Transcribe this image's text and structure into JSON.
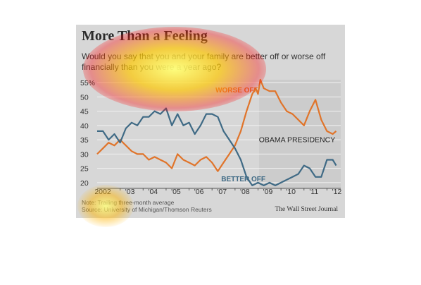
{
  "header": {
    "title": "More Than a Feeling",
    "subtitle": "Would you say that you and your family are better off or worse off financially than you were a year ago?"
  },
  "footer": {
    "note": "Note: Trailing three-month average",
    "source": "Source: University of Michigan/Thomson Reuters",
    "credit": "The Wall Street Journal"
  },
  "chart_data": {
    "type": "line",
    "title": "More Than a Feeling",
    "subtitle": "Would you say that you and your family are better off or worse off financially than you were a year ago?",
    "xlabel": "",
    "ylabel": "",
    "x_ticks": [
      "2002",
      "'03",
      "'04",
      "'05",
      "'06",
      "'07",
      "'08",
      "'09",
      "'10",
      "'11",
      "'12"
    ],
    "y_ticks": [
      "20",
      "25",
      "30",
      "35",
      "40",
      "45",
      "50",
      "55%"
    ],
    "xlim": [
      2002,
      2012.6
    ],
    "ylim": [
      18,
      56
    ],
    "grid": true,
    "annotations": {
      "worse": "WORSE OFF",
      "better": "BETTER OFF",
      "obama": "OBAMA PRESIDENCY"
    },
    "shaded_region": [
      2009.05,
      2012.6
    ],
    "colors": {
      "worse": "#e0742a",
      "better": "#3f6a85",
      "grid": "#f2f2f2",
      "shade": "#cccccc"
    },
    "series": [
      {
        "key": "worse",
        "label": "WORSE OFF",
        "points": [
          [
            2002.0,
            30
          ],
          [
            2002.25,
            32
          ],
          [
            2002.5,
            34
          ],
          [
            2002.75,
            33
          ],
          [
            2003.0,
            35
          ],
          [
            2003.25,
            33
          ],
          [
            2003.5,
            31
          ],
          [
            2003.75,
            30
          ],
          [
            2004.0,
            30
          ],
          [
            2004.25,
            28
          ],
          [
            2004.5,
            29
          ],
          [
            2004.75,
            28
          ],
          [
            2005.0,
            27
          ],
          [
            2005.25,
            25
          ],
          [
            2005.5,
            30
          ],
          [
            2005.75,
            28
          ],
          [
            2006.0,
            27
          ],
          [
            2006.25,
            26
          ],
          [
            2006.5,
            28
          ],
          [
            2006.75,
            29
          ],
          [
            2007.0,
            27
          ],
          [
            2007.25,
            24
          ],
          [
            2007.5,
            27
          ],
          [
            2007.75,
            30
          ],
          [
            2008.0,
            33
          ],
          [
            2008.25,
            38
          ],
          [
            2008.5,
            45
          ],
          [
            2008.75,
            51
          ],
          [
            2008.9,
            53
          ],
          [
            2009.0,
            51
          ],
          [
            2009.1,
            56
          ],
          [
            2009.25,
            53
          ],
          [
            2009.5,
            52
          ],
          [
            2009.75,
            52
          ],
          [
            2010.0,
            48
          ],
          [
            2010.25,
            45
          ],
          [
            2010.5,
            44
          ],
          [
            2010.75,
            42
          ],
          [
            2011.0,
            40
          ],
          [
            2011.25,
            45
          ],
          [
            2011.5,
            49
          ],
          [
            2011.75,
            42
          ],
          [
            2012.0,
            38
          ],
          [
            2012.25,
            37
          ],
          [
            2012.4,
            38
          ]
        ]
      },
      {
        "key": "better",
        "label": "BETTER OFF",
        "points": [
          [
            2002.0,
            38
          ],
          [
            2002.25,
            38
          ],
          [
            2002.5,
            35
          ],
          [
            2002.75,
            37
          ],
          [
            2003.0,
            34
          ],
          [
            2003.25,
            39
          ],
          [
            2003.5,
            41
          ],
          [
            2003.75,
            40
          ],
          [
            2004.0,
            43
          ],
          [
            2004.25,
            43
          ],
          [
            2004.5,
            45
          ],
          [
            2004.75,
            44
          ],
          [
            2005.0,
            46
          ],
          [
            2005.25,
            40
          ],
          [
            2005.5,
            44
          ],
          [
            2005.75,
            40
          ],
          [
            2006.0,
            41
          ],
          [
            2006.25,
            37
          ],
          [
            2006.5,
            40
          ],
          [
            2006.75,
            44
          ],
          [
            2007.0,
            44
          ],
          [
            2007.25,
            43
          ],
          [
            2007.5,
            38
          ],
          [
            2007.75,
            35
          ],
          [
            2008.0,
            32
          ],
          [
            2008.25,
            28
          ],
          [
            2008.5,
            22
          ],
          [
            2008.75,
            19
          ],
          [
            2009.0,
            20
          ],
          [
            2009.25,
            19
          ],
          [
            2009.5,
            20
          ],
          [
            2009.75,
            19
          ],
          [
            2010.0,
            20
          ],
          [
            2010.25,
            21
          ],
          [
            2010.5,
            22
          ],
          [
            2010.75,
            23
          ],
          [
            2011.0,
            26
          ],
          [
            2011.25,
            25
          ],
          [
            2011.5,
            22
          ],
          [
            2011.75,
            22
          ],
          [
            2012.0,
            28
          ],
          [
            2012.25,
            28
          ],
          [
            2012.4,
            26
          ]
        ]
      }
    ]
  }
}
